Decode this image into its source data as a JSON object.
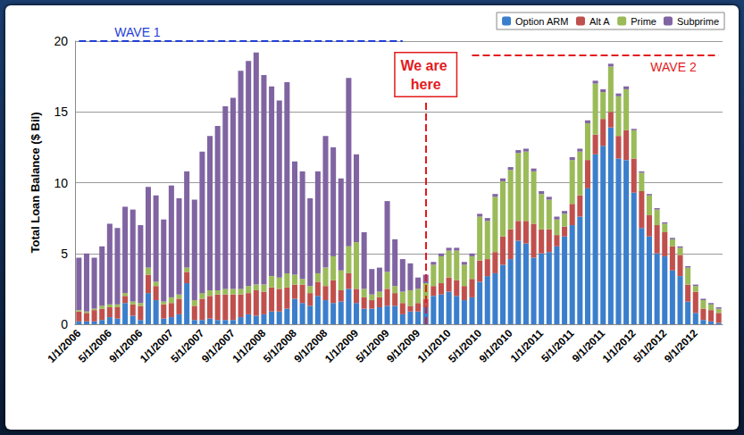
{
  "chart_data": {
    "type": "bar",
    "stacked": true,
    "grid": true,
    "legend": "upper right",
    "y_label": "Total Loan Balance ($ Bil)",
    "ylim": [
      0,
      20
    ],
    "yticks": [
      0,
      5,
      10,
      15,
      20
    ],
    "categories": [
      "1/1/2006",
      null,
      null,
      null,
      "5/1/2006",
      null,
      null,
      null,
      "9/1/2006",
      null,
      null,
      null,
      "1/1/2007",
      null,
      null,
      null,
      "5/1/2007",
      null,
      null,
      null,
      "9/1/2007",
      null,
      null,
      null,
      "1/1/2008",
      null,
      null,
      null,
      "5/1/2008",
      null,
      null,
      null,
      "9/1/2008",
      null,
      null,
      null,
      "1/1/2009",
      null,
      null,
      null,
      "5/1/2009",
      null,
      null,
      null,
      "9/1/2009",
      null,
      null,
      null,
      "1/1/2010",
      null,
      null,
      null,
      "5/1/2010",
      null,
      null,
      null,
      "9/1/2010",
      null,
      null,
      null,
      "1/1/2011",
      null,
      null,
      null,
      "5/1/2011",
      null,
      null,
      null,
      "9/1/2011",
      null,
      null,
      null,
      "1/1/2012",
      null,
      null,
      null,
      "5/1/2012",
      null,
      null,
      null,
      "9/1/2012",
      null,
      null,
      null
    ],
    "series": [
      {
        "name": "Option ARM",
        "color": "#3b7fcc",
        "values": [
          0.2,
          0.2,
          0.2,
          0.3,
          0.5,
          0.4,
          1.5,
          0.6,
          0.3,
          2.2,
          1.7,
          0.4,
          0.5,
          0.7,
          2.9,
          0.3,
          0.3,
          0.4,
          0.3,
          0.3,
          0.3,
          0.5,
          0.7,
          0.6,
          0.7,
          0.9,
          0.9,
          1.1,
          1.8,
          1.5,
          1.3,
          2.0,
          1.7,
          1.5,
          1.6,
          2.5,
          1.5,
          1.1,
          1.1,
          1.2,
          1.3,
          1.3,
          0.7,
          0.9,
          0.9,
          1.2,
          2.0,
          2.1,
          2.3,
          2.0,
          1.7,
          1.9,
          3.0,
          3.4,
          3.6,
          4.2,
          4.6,
          5.9,
          5.7,
          4.7,
          5.0,
          5.1,
          5.5,
          6.2,
          7.0,
          7.6,
          9.6,
          12.0,
          12.6,
          13.9,
          11.7,
          11.6,
          9.3,
          6.8,
          6.2,
          5.0,
          4.8,
          3.8,
          3.4,
          1.6,
          0.8,
          0.3,
          0.2,
          0.1
        ]
      },
      {
        "name": "Alt A",
        "color": "#c0504d",
        "values": [
          0.7,
          0.6,
          0.8,
          0.8,
          0.7,
          0.8,
          0.5,
          0.8,
          1.0,
          1.3,
          1.0,
          1.0,
          1.0,
          1.1,
          0.8,
          1.0,
          1.5,
          1.6,
          1.8,
          1.8,
          1.8,
          1.6,
          1.5,
          1.8,
          1.6,
          1.7,
          1.6,
          1.5,
          1.0,
          1.3,
          0.9,
          1.0,
          1.0,
          1.6,
          0.8,
          1.1,
          1.0,
          0.8,
          0.6,
          0.7,
          1.2,
          0.9,
          0.8,
          0.4,
          0.6,
          0.6,
          0.7,
          0.8,
          1.0,
          1.1,
          1.0,
          1.3,
          1.5,
          1.2,
          1.5,
          2.0,
          2.1,
          1.4,
          1.6,
          2.4,
          1.7,
          1.6,
          0.8,
          0.7,
          1.5,
          1.5,
          2.0,
          1.4,
          1.9,
          1.1,
          1.6,
          2.1,
          2.4,
          2.6,
          1.5,
          2.0,
          1.7,
          1.7,
          1.5,
          1.2,
          1.5,
          0.8,
          0.8,
          0.7
        ]
      },
      {
        "name": "Prime",
        "color": "#9bbb59",
        "values": [
          0.1,
          0.1,
          0.1,
          0.2,
          0.2,
          0.2,
          0.2,
          0.2,
          0.2,
          0.5,
          0.3,
          0.2,
          0.4,
          0.3,
          0.3,
          0.4,
          0.4,
          0.4,
          0.3,
          0.4,
          0.4,
          0.4,
          0.5,
          0.4,
          0.5,
          0.8,
          0.8,
          1.0,
          0.7,
          0.4,
          0.5,
          0.6,
          1.3,
          1.7,
          1.4,
          1.9,
          3.3,
          0.6,
          0.4,
          0.4,
          1.2,
          0.5,
          0.8,
          1.1,
          1.0,
          1.1,
          1.5,
          1.9,
          1.9,
          2.1,
          1.5,
          1.6,
          3.1,
          2.7,
          3.9,
          3.9,
          4.2,
          4.8,
          4.9,
          3.7,
          2.5,
          2.1,
          1.1,
          0.9,
          3.1,
          3.1,
          2.6,
          3.6,
          1.9,
          3.2,
          2.8,
          2.9,
          2.0,
          1.3,
          1.4,
          1.1,
          0.6,
          0.5,
          0.5,
          1.2,
          0.4,
          0.6,
          0.4,
          0.3
        ]
      },
      {
        "name": "Subprime",
        "color": "#8064a2",
        "values": [
          3.7,
          4.1,
          3.6,
          4.2,
          5.7,
          5.4,
          6.1,
          6.5,
          5.5,
          5.7,
          6.1,
          5.8,
          7.9,
          6.8,
          6.8,
          7.1,
          10.0,
          10.9,
          11.6,
          12.9,
          13.5,
          15.4,
          15.9,
          16.4,
          14.8,
          13.4,
          12.5,
          13.5,
          8.0,
          7.6,
          6.2,
          7.2,
          9.3,
          7.7,
          6.5,
          11.9,
          6.2,
          4.0,
          1.8,
          1.7,
          5.0,
          3.3,
          2.3,
          1.9,
          0.8,
          0.6,
          0.2,
          0.2,
          0.2,
          0.2,
          0.2,
          0.2,
          0.2,
          0.2,
          0.2,
          0.2,
          0.2,
          0.2,
          0.2,
          0.2,
          0.2,
          0.2,
          0.2,
          0.2,
          0.2,
          0.2,
          0.2,
          0.2,
          0.2,
          0.2,
          0.2,
          0.2,
          0.1,
          0.1,
          0.1,
          0.1,
          0.1,
          0.1,
          0.1,
          0.1,
          0.1,
          0.1,
          0.1,
          0.1
        ]
      }
    ],
    "annotations": [
      {
        "text": "WAVE 1",
        "color": "#1f3fd6",
        "y": 20,
        "x_from": 0,
        "x_to": 42
      },
      {
        "text": "WAVE 2",
        "color": "#e31a1c",
        "y": 19,
        "x_from": 51,
        "x_to": 83
      },
      {
        "text": "We are here",
        "color": "#e31a1c",
        "x": 45,
        "y_from": 0,
        "y_to": 15.8
      }
    ]
  }
}
